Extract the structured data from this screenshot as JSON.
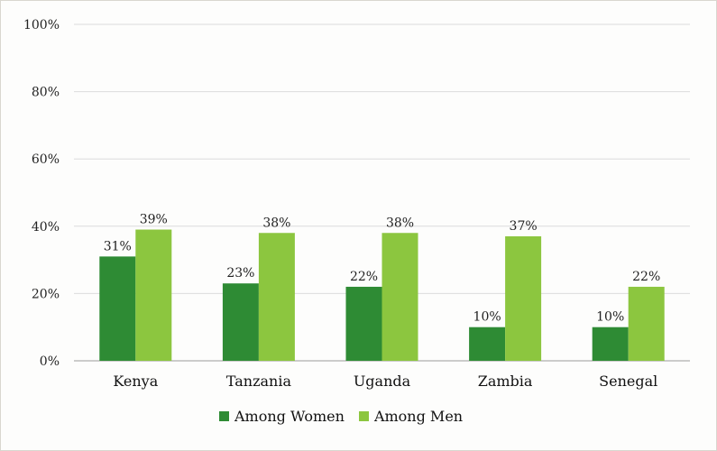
{
  "chart_data": {
    "type": "bar",
    "categories": [
      "Kenya",
      "Tanzania",
      "Uganda",
      "Zambia",
      "Senegal"
    ],
    "series": [
      {
        "name": "Among Women",
        "values": [
          31,
          23,
          22,
          10,
          10
        ],
        "labels": [
          "31%",
          "23%",
          "22%",
          "10%",
          "10%"
        ],
        "color": "#2e8b34"
      },
      {
        "name": "Among Men",
        "values": [
          39,
          38,
          38,
          37,
          22
        ],
        "labels": [
          "39%",
          "38%",
          "38%",
          "37%",
          "22%"
        ],
        "color": "#8cc63f"
      }
    ],
    "yticks": [
      "0%",
      "20%",
      "40%",
      "60%",
      "80%",
      "100%"
    ],
    "ylim": [
      0,
      100
    ],
    "grid": true,
    "legend_position": "bottom",
    "title": "",
    "xlabel": "",
    "ylabel": ""
  }
}
